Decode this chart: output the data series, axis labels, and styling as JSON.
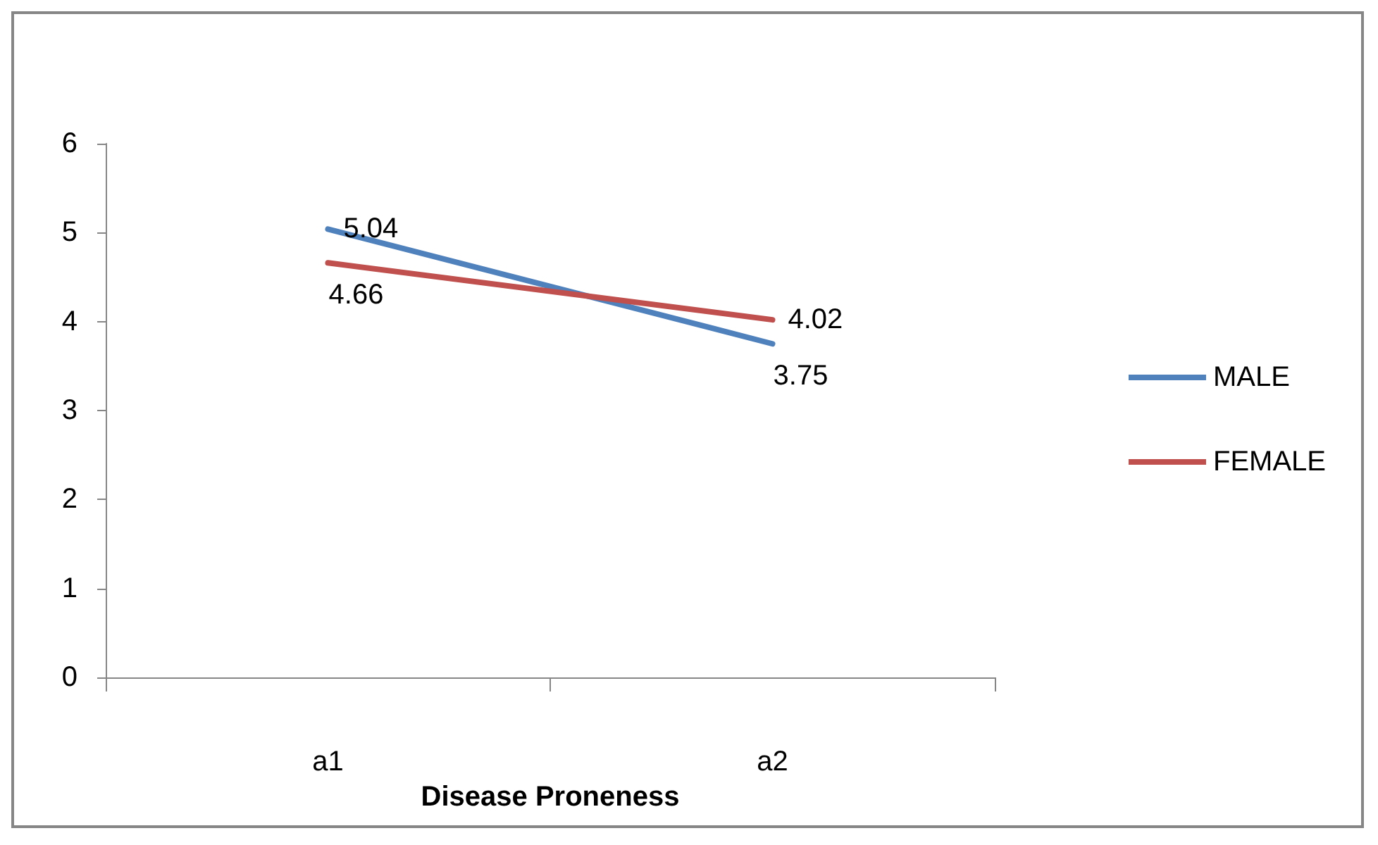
{
  "chart_data": {
    "type": "line",
    "xlabel": "Disease Proneness",
    "categories": [
      "a1",
      "a2"
    ],
    "series": [
      {
        "name": "MALE",
        "color": "#4f81bd",
        "values": [
          5.04,
          3.75
        ]
      },
      {
        "name": "FEMALE",
        "color": "#c0504d",
        "values": [
          4.66,
          4.02
        ]
      }
    ],
    "ylim": [
      0,
      6
    ],
    "yticks": [
      0,
      1,
      2,
      3,
      4,
      5,
      6
    ],
    "grid": false,
    "legend": "right",
    "data_labels": true,
    "marker": "none",
    "line_style": "solid"
  }
}
